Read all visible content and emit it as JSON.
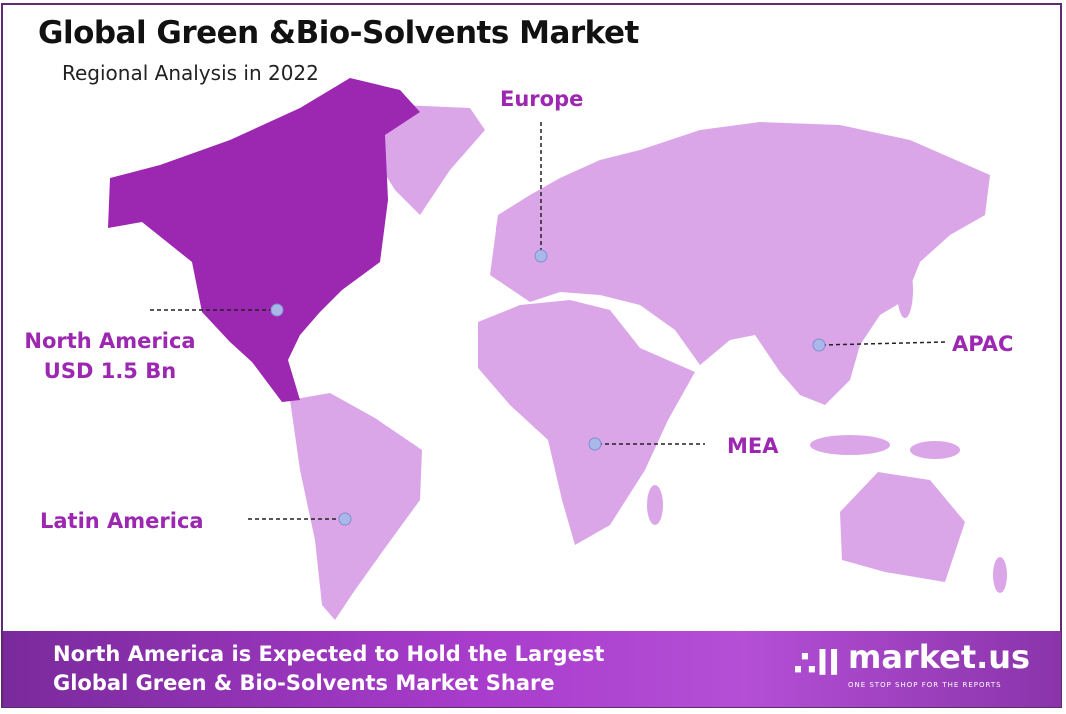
{
  "header": {
    "title": "Global Green &Bio-Solvents Market",
    "subtitle": "Regional Analysis in 2022"
  },
  "regions": [
    {
      "name": "Europe"
    },
    {
      "name": "North America",
      "value": "USD 1.5 Bn",
      "highlighted": true
    },
    {
      "name": "APAC"
    },
    {
      "name": "MEA"
    },
    {
      "name": "Latin America"
    }
  ],
  "colors": {
    "highlight": "#9c27b0",
    "land": "#dba6e8",
    "label": "#9c27b0",
    "marker": "#a9b8e8"
  },
  "footer": {
    "line1": "North America is Expected to Hold the Largest",
    "line2": "Global Green & Bio-Solvents Market Share"
  },
  "logo": {
    "name": "market.us",
    "tagline": "ONE STOP SHOP FOR THE REPORTS"
  }
}
